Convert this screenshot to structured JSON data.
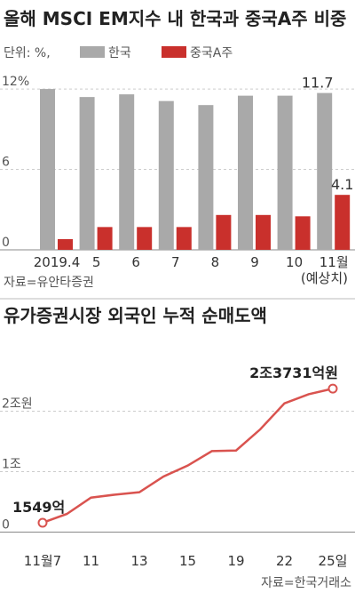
{
  "chart_data": [
    {
      "type": "bar",
      "title": "올해 MSCI EM지수 내 한국과 중국A주 비중",
      "subtitle": "단위: %,",
      "categories": [
        "2019.4",
        "5",
        "6",
        "7",
        "8",
        "9",
        "10",
        "11월"
      ],
      "annotation": "(예상치)",
      "series": [
        {
          "name": "한국",
          "color": "#a9a9a9",
          "values": [
            12.0,
            11.4,
            11.6,
            11.1,
            10.8,
            11.5,
            11.5,
            11.7
          ]
        },
        {
          "name": "중국A주",
          "color": "#c9302c",
          "values": [
            0.8,
            1.7,
            1.7,
            1.7,
            2.6,
            2.6,
            2.5,
            4.1
          ]
        }
      ],
      "ylim": [
        0,
        13
      ],
      "yticks": [
        0,
        6,
        {
          "value": 12,
          "label": "12%"
        }
      ],
      "grid": true,
      "source": "자료=유안타증권"
    },
    {
      "type": "line",
      "title": "유가증권시장 외국인 누적 순매도액",
      "categories": [
        "11월7",
        null,
        "11",
        null,
        "13",
        null,
        "15",
        null,
        "19",
        null,
        "22",
        null,
        "25일"
      ],
      "series": [
        {
          "name": null,
          "color": "#d9534f",
          "values": [
            1549,
            3000,
            5700,
            6200,
            6600,
            9200,
            11000,
            13400,
            13500,
            17000,
            21300,
            22800,
            23731
          ],
          "value_labels": [
            "1549억",
            null,
            null,
            null,
            null,
            null,
            null,
            null,
            null,
            null,
            null,
            null,
            "2조3731억원"
          ]
        }
      ],
      "ylim": [
        0,
        25000
      ],
      "yticks": [
        0,
        {
          "value": 10000,
          "label": "1조"
        },
        {
          "value": 20000,
          "label": "2조원"
        }
      ],
      "grid": true,
      "source": "자료=한국거래소"
    }
  ]
}
